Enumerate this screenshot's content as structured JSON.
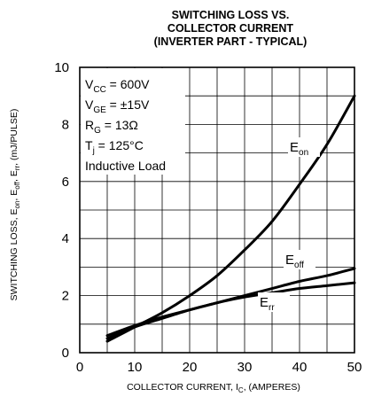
{
  "title_lines": [
    "SWITCHING LOSS VS.",
    "COLLECTOR CURRENT",
    "(INVERTER PART - TYPICAL)"
  ],
  "chart_data": {
    "type": "line",
    "title": "SWITCHING LOSS VS. COLLECTOR CURRENT (INVERTER PART - TYPICAL)",
    "xlabel": {
      "text": "COLLECTOR CURRENT, I",
      "sub": "C",
      "suffix": ", (AMPERES)"
    },
    "ylabel": {
      "parts": [
        {
          "t": "SWITCHING LOSS, E"
        },
        {
          "t": "on",
          "sub": true
        },
        {
          "t": ", E"
        },
        {
          "t": "off",
          "sub": true
        },
        {
          "t": ", E"
        },
        {
          "t": "rr",
          "sub": true
        },
        {
          "t": ", (mJ/PULSE)"
        }
      ]
    },
    "xlim": [
      0,
      50
    ],
    "ylim": [
      0,
      10
    ],
    "xticks": [
      0,
      10,
      20,
      30,
      40,
      50
    ],
    "yticks": [
      0,
      2,
      4,
      6,
      8,
      10
    ],
    "grid": true,
    "legend": "none",
    "conditions": [
      {
        "main": "V",
        "sub": "CC",
        "rest": " = 600V"
      },
      {
        "main": "V",
        "sub": "GE",
        "rest": " = ±15V"
      },
      {
        "main": "R",
        "sub": "G",
        "rest": " = 13Ω"
      },
      {
        "main": "T",
        "sub": "j",
        "rest": " = 125°C"
      },
      {
        "main": "Inductive Load",
        "sub": "",
        "rest": ""
      }
    ],
    "series": [
      {
        "name": "E",
        "name_sub": "on",
        "x": [
          5,
          10,
          15,
          20,
          25,
          30,
          35,
          40,
          45,
          50
        ],
        "y": [
          0.4,
          0.9,
          1.4,
          2.0,
          2.7,
          3.6,
          4.6,
          5.9,
          7.3,
          9.0
        ]
      },
      {
        "name": "E",
        "name_sub": "off",
        "x": [
          5,
          10,
          15,
          20,
          25,
          30,
          35,
          40,
          45,
          50
        ],
        "y": [
          0.5,
          0.9,
          1.2,
          1.5,
          1.75,
          2.0,
          2.25,
          2.5,
          2.7,
          2.95
        ]
      },
      {
        "name": "E",
        "name_sub": "rr",
        "x": [
          5,
          10,
          15,
          20,
          25,
          30,
          35,
          40,
          45,
          50
        ],
        "y": [
          0.6,
          0.95,
          1.25,
          1.5,
          1.75,
          1.95,
          2.1,
          2.25,
          2.35,
          2.45
        ]
      }
    ]
  }
}
